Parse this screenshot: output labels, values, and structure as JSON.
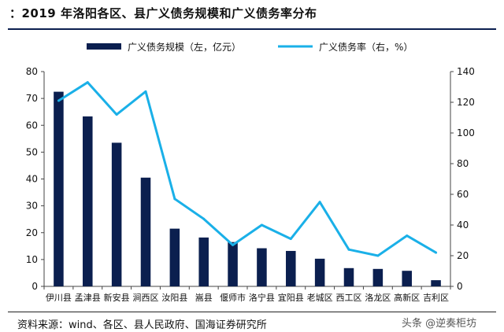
{
  "header": {
    "title": "：2019 年洛阳各区、县广义债务规模和广义债务率分布"
  },
  "footer": {
    "source": "资料来源：wind、各区、县人民政府、国海证券研究所",
    "watermark": "头条 @逆奏柜坊"
  },
  "chart_data": {
    "type": "bar",
    "categories": [
      "伊川县",
      "孟津县",
      "新安县",
      "涧西区",
      "汝阳县",
      "嵩县",
      "偃师市",
      "洛宁县",
      "宜阳县",
      "老城区",
      "西工区",
      "洛龙区",
      "高新区",
      "吉利区"
    ],
    "series": [
      {
        "name": "广义债务规模（左，亿元）",
        "type": "bar",
        "axis": "left",
        "color": "#0b1f4f",
        "values": [
          72.5,
          63.3,
          53.5,
          40.5,
          21.5,
          18.2,
          16.5,
          14.2,
          13.2,
          10.3,
          6.8,
          6.5,
          5.8,
          2.3
        ]
      },
      {
        "name": "广义债务率（右，%）",
        "type": "line",
        "axis": "right",
        "color": "#1ab0e8",
        "values": [
          121,
          133,
          112,
          127,
          57,
          44,
          27,
          40,
          31,
          55,
          24,
          20,
          33,
          22
        ]
      }
    ],
    "y_left": {
      "min": 0,
      "max": 80,
      "ticks": [
        0,
        10,
        20,
        30,
        40,
        50,
        60,
        70,
        80
      ]
    },
    "y_right": {
      "min": 0,
      "max": 140,
      "ticks": [
        0,
        20,
        40,
        60,
        80,
        100,
        120,
        140
      ]
    },
    "legend_placement": "top"
  }
}
